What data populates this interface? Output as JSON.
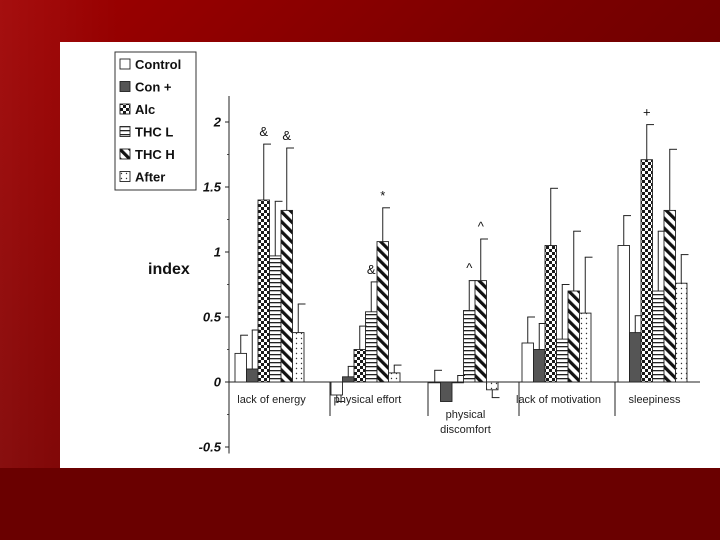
{
  "chart_data": {
    "type": "bar",
    "title": "",
    "xlabel": "",
    "ylabel": "index",
    "ylim": [
      -0.5,
      2.2
    ],
    "yticks": [
      "-0.5",
      "0",
      "0.5",
      "1",
      "1.5",
      "2"
    ],
    "grid": false,
    "legend_position": "top-left",
    "categories": [
      [
        "lack of energy"
      ],
      [
        "physical effort"
      ],
      [
        "physical",
        "discomfort"
      ],
      [
        "lack of motivation"
      ],
      [
        "sleepiness"
      ]
    ],
    "series": [
      {
        "name": "Control",
        "pattern": "white",
        "values": [
          0.22,
          -0.1,
          0.0,
          0.3,
          1.05
        ],
        "errors": [
          0.14,
          0.05,
          0.09,
          0.2,
          0.23
        ]
      },
      {
        "name": "Con +",
        "pattern": "gray",
        "values": [
          0.1,
          0.04,
          -0.15,
          0.25,
          0.38
        ],
        "errors": [
          0.3,
          0.08,
          0.0,
          0.2,
          0.13
        ]
      },
      {
        "name": "Alc",
        "pattern": "checker",
        "values": [
          1.4,
          0.25,
          0.0,
          1.05,
          1.71
        ],
        "errors": [
          0.43,
          0.18,
          0.05,
          0.44,
          0.27
        ]
      },
      {
        "name": "THC L",
        "pattern": "hlines",
        "values": [
          0.97,
          0.54,
          0.55,
          0.33,
          0.7
        ],
        "errors": [
          0.42,
          0.23,
          0.23,
          0.42,
          0.46
        ]
      },
      {
        "name": "THC H",
        "pattern": "diag",
        "values": [
          1.32,
          1.08,
          0.78,
          0.7,
          1.32
        ],
        "errors": [
          0.48,
          0.26,
          0.32,
          0.46,
          0.47
        ]
      },
      {
        "name": "After",
        "pattern": "dots",
        "values": [
          0.38,
          0.07,
          -0.06,
          0.53,
          0.76
        ],
        "errors": [
          0.22,
          0.06,
          0.06,
          0.43,
          0.22
        ]
      }
    ],
    "annotations": [
      {
        "text": "&",
        "category": 0,
        "series": 2
      },
      {
        "text": "&",
        "category": 0,
        "series": 4
      },
      {
        "text": "&",
        "category": 1,
        "series": 3
      },
      {
        "text": "*",
        "category": 1,
        "series": 4
      },
      {
        "text": "^",
        "category": 2,
        "series": 3
      },
      {
        "text": "^",
        "category": 2,
        "series": 4
      },
      {
        "text": "+",
        "category": 4,
        "series": 2
      }
    ]
  }
}
